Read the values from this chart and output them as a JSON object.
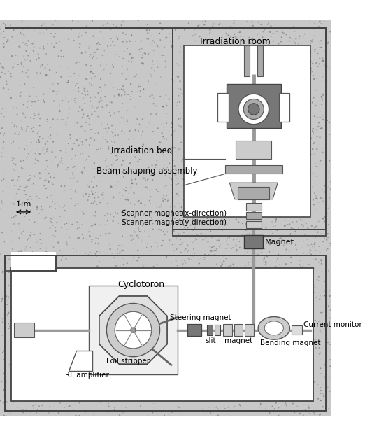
{
  "fig_width": 5.22,
  "fig_height": 6.23,
  "dpi": 100,
  "labels": {
    "irradiation_room": "Irradiation room",
    "irradiation_bed": "Irradiation bed",
    "beam_shaping": "Beam shaping assembly",
    "scanner_x": "Scanner magnet(x-direction)",
    "scanner_y": "Scanner magnet(y-direction)",
    "magnet": "Magnet",
    "cyclotron": "Cyclotoron",
    "steering_magnet": "Steering magnet",
    "current_monitor": "Current monitor",
    "rf_amplifier": "RF amplifier",
    "foil_stripper": "Foil stripper",
    "slit": "slit",
    "magnet_small": "magnet",
    "bending_magnet": "Bending magnet",
    "scale_label": "1 m"
  },
  "colors": {
    "concrete": "#c8c8c8",
    "speckle": "#555555",
    "white_room": "#ffffff",
    "wall_edge": "#444444",
    "gray_dark": "#777777",
    "gray_mid": "#aaaaaa",
    "gray_light": "#cccccc",
    "gray_lighter": "#dddddd",
    "beam_line": "#666666"
  }
}
